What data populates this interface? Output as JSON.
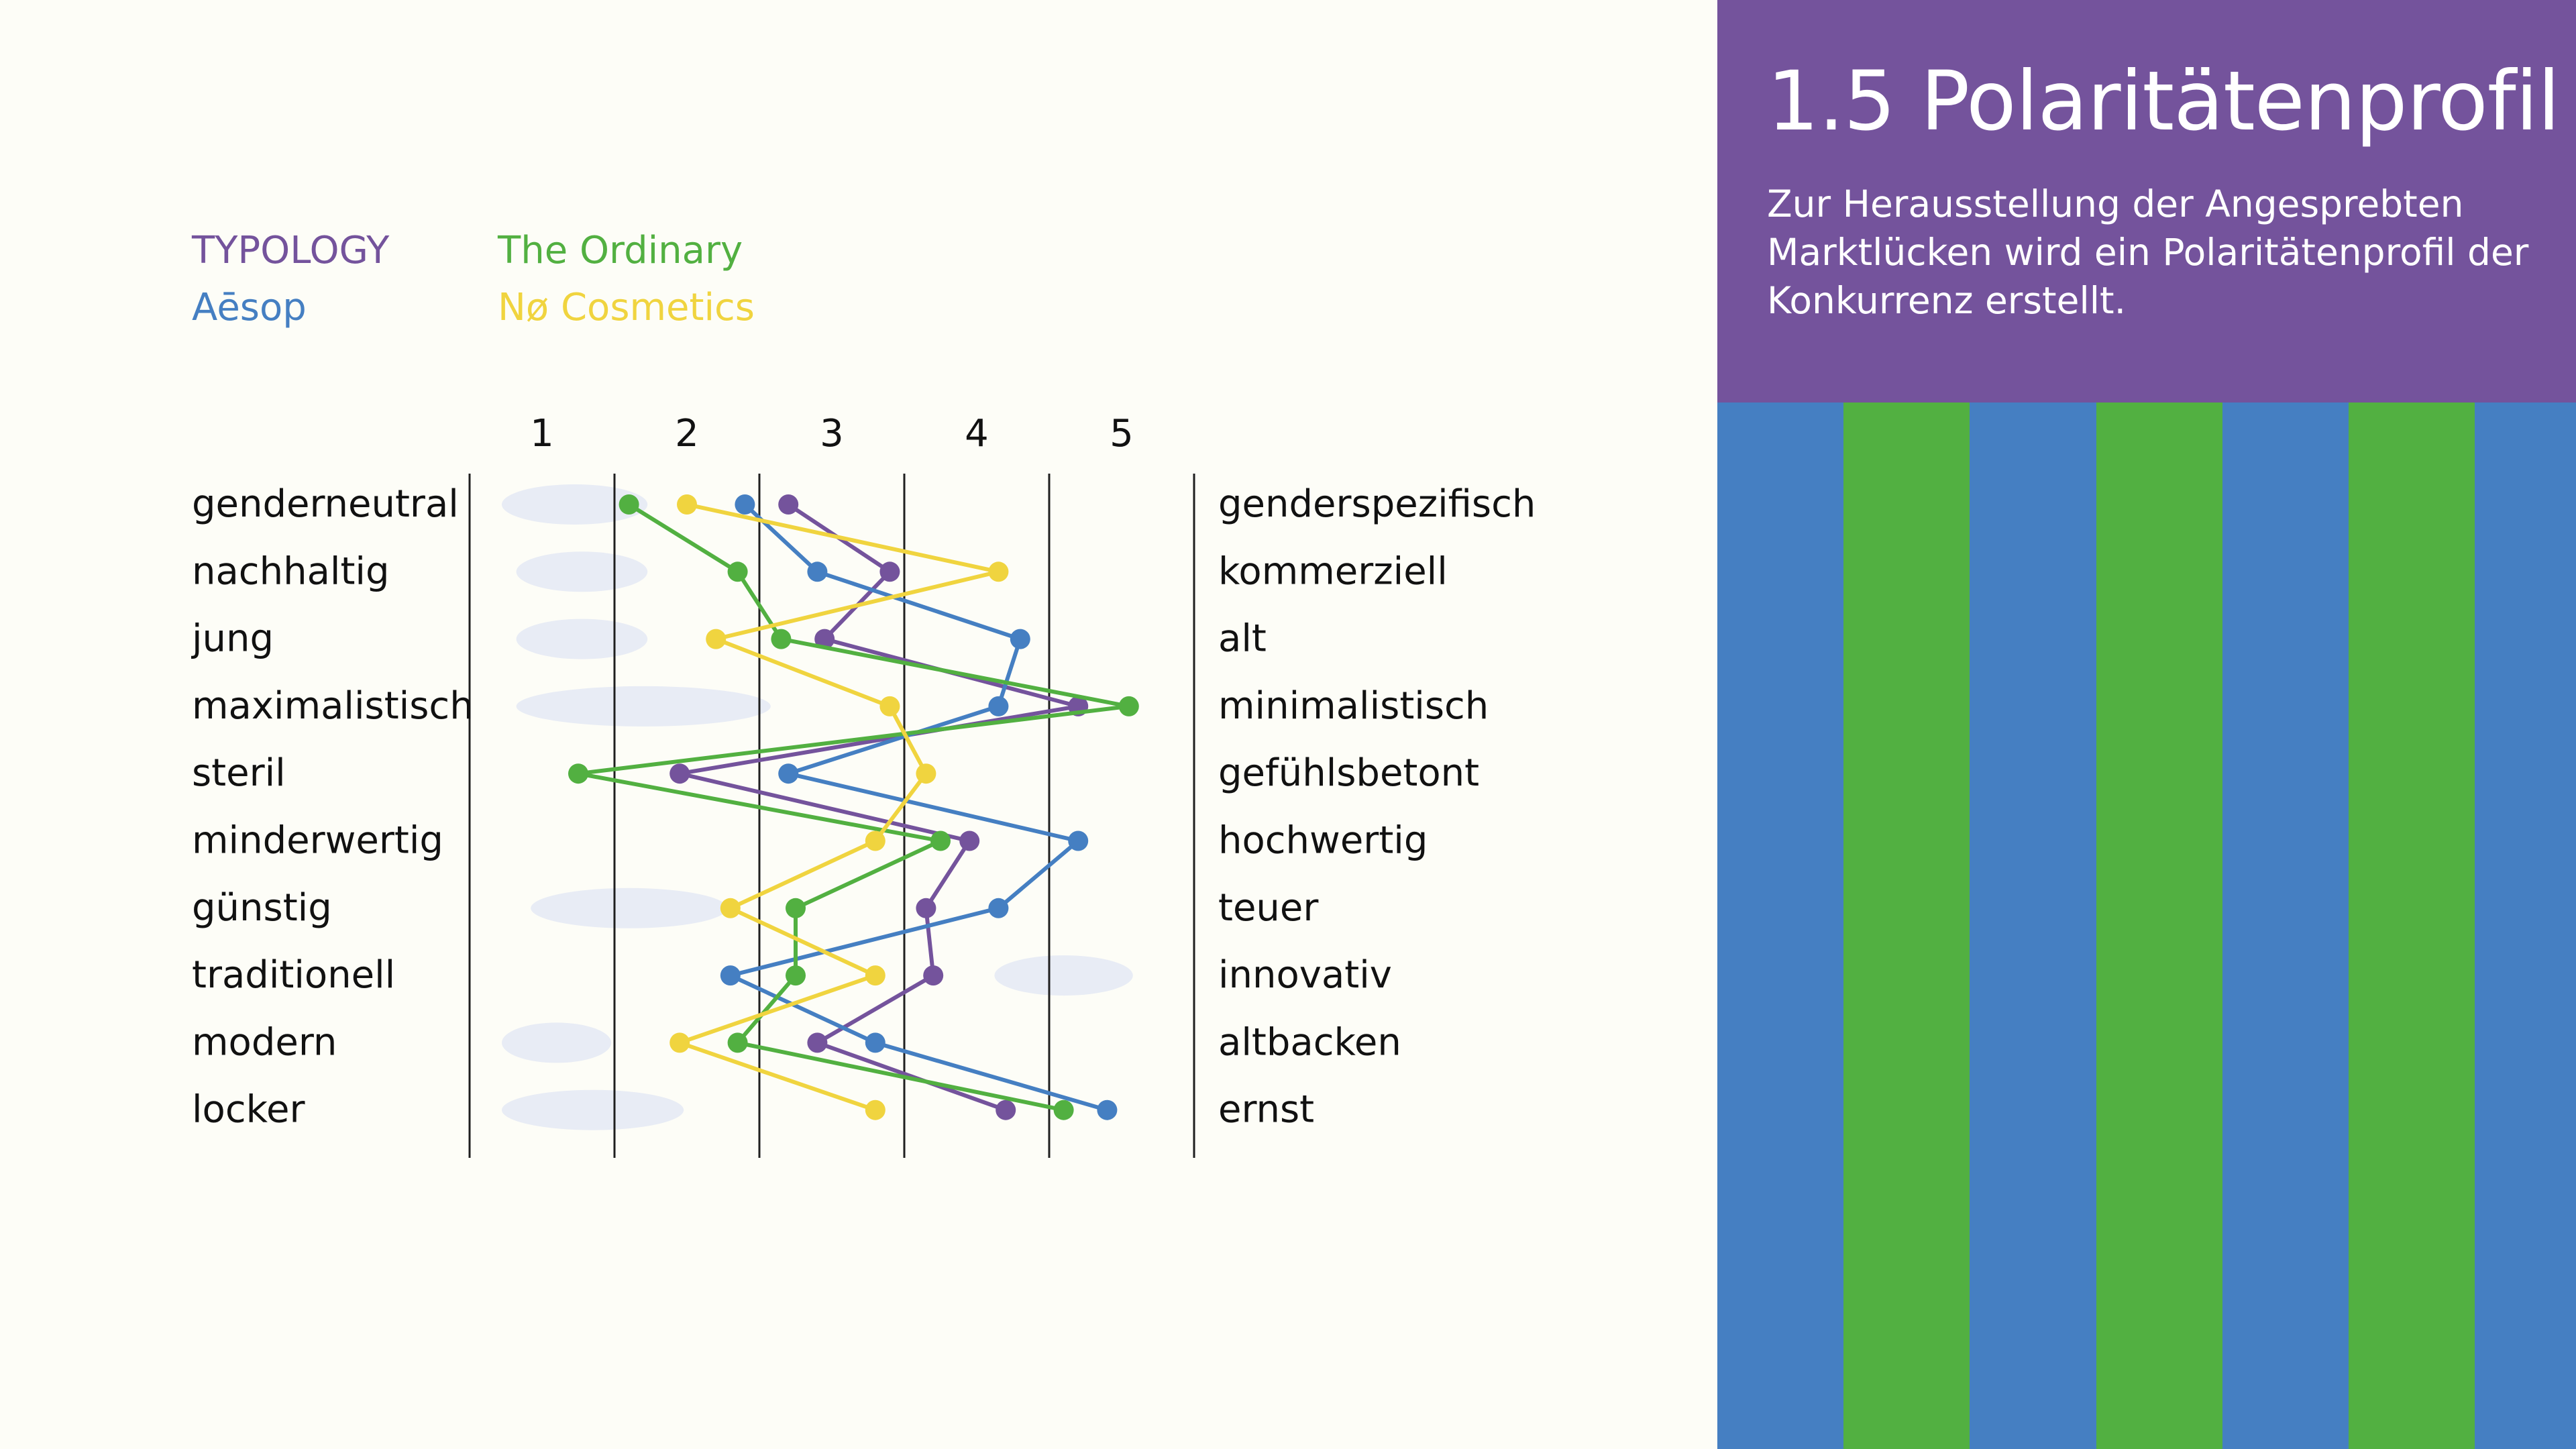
{
  "panel": {
    "title": "1.5 Polaritätenprofil",
    "description": "Zur Herausstellung der Angesprebten Marktlücken wird ein Polaritätenprofil der Konkurrenz erstellt.",
    "header_color": "#74539c",
    "stripe_colors": [
      "#457fc2",
      "#52b041",
      "#457fc2",
      "#52b041",
      "#457fc2",
      "#52b041",
      "#457fc2"
    ]
  },
  "colors": {
    "background": "#fdfdf7",
    "gridline": "#1f1f1f",
    "text": "#111111",
    "highlight": "#e8ecf5"
  },
  "chart_data": {
    "type": "line",
    "orientation": "horizontal-profile",
    "scale_ticks": [
      "1",
      "2",
      "3",
      "4",
      "5"
    ],
    "left_labels": [
      "genderneutral",
      "nachhaltig",
      "jung",
      "maximalistisch",
      "steril",
      "minderwertig",
      "günstig",
      "traditionell",
      "modern",
      "locker"
    ],
    "right_labels": [
      "genderspezifisch",
      "kommerziell",
      "alt",
      "minimalistisch",
      "gefühlsbetont",
      "hochwertig",
      "teuer",
      "innovativ",
      "altbacken",
      "ernst"
    ],
    "xlim": [
      0.5,
      5.5
    ],
    "grid": true,
    "legend_position": "top-left",
    "series": [
      {
        "name": "TYPOLOGY",
        "color": "#74539c",
        "values": [
          2.7,
          3.4,
          2.95,
          4.7,
          1.95,
          3.95,
          3.65,
          3.7,
          2.9,
          4.2
        ]
      },
      {
        "name": "Aēsop",
        "color": "#457fc2",
        "values": [
          2.4,
          2.9,
          4.3,
          4.15,
          2.7,
          4.7,
          4.15,
          2.3,
          3.3,
          4.9
        ]
      },
      {
        "name": "The Ordinary",
        "color": "#52b041",
        "values": [
          1.6,
          2.35,
          2.65,
          5.05,
          1.25,
          3.75,
          2.75,
          2.75,
          2.35,
          4.6
        ]
      },
      {
        "name": "Nø Cosmetics",
        "color": "#f0d43f",
        "values": [
          2.0,
          4.15,
          2.2,
          3.4,
          3.65,
          3.3,
          2.3,
          3.3,
          1.95,
          3.3
        ]
      }
    ],
    "legend_layout": [
      [
        "TYPOLOGY",
        "The Ordinary"
      ],
      [
        "Aēsop",
        "Nø Cosmetics"
      ]
    ],
    "background_shapes": [
      {
        "row": 0,
        "from": 1.0,
        "to": 1.45
      },
      {
        "row": 1,
        "from": 1.1,
        "to": 1.45
      },
      {
        "row": 2,
        "from": 1.1,
        "to": 1.45
      },
      {
        "row": 3,
        "from": 1.1,
        "to": 2.3
      },
      {
        "row": 6,
        "from": 1.2,
        "to": 2.0
      },
      {
        "row": 7,
        "from": 4.4,
        "to": 4.8
      },
      {
        "row": 8,
        "from": 1.0,
        "to": 1.2
      },
      {
        "row": 9,
        "from": 1.0,
        "to": 1.7
      }
    ]
  }
}
